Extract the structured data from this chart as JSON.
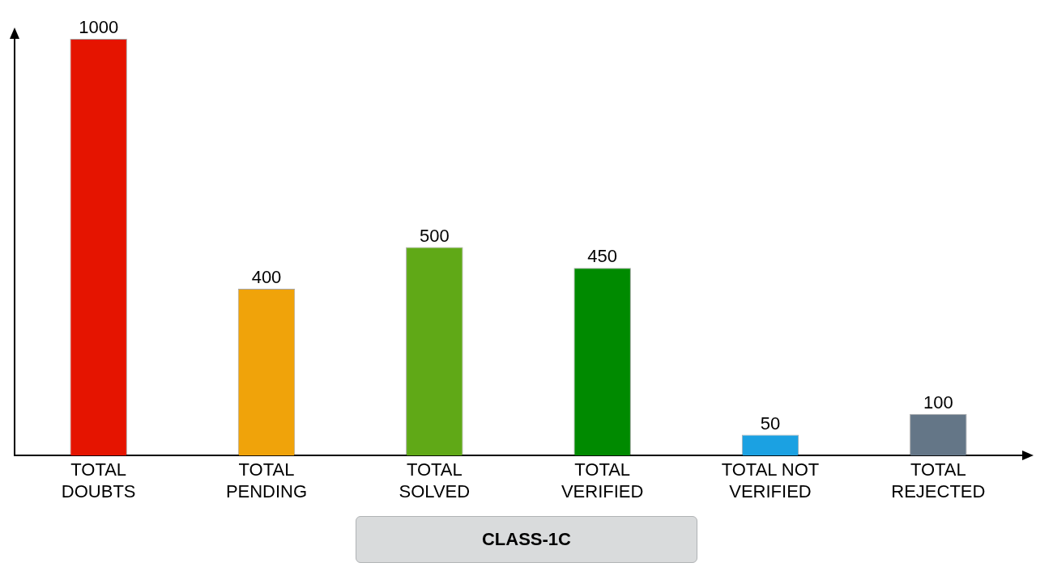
{
  "chart_data": {
    "type": "bar",
    "title": "CLASS-1C",
    "categories": [
      "TOTAL DOUBTS",
      "TOTAL PENDING",
      "TOTAL SOLVED",
      "TOTAL VERIFIED",
      "TOTAL NOT VERIFIED",
      "TOTAL REJECTED"
    ],
    "values": [
      1000,
      400,
      500,
      450,
      50,
      100
    ],
    "colors": [
      "#e51400",
      "#f0a30a",
      "#60a917",
      "#008a00",
      "#1ba1e2",
      "#647687"
    ],
    "data_labels": true,
    "grid": false,
    "legend": false
  }
}
